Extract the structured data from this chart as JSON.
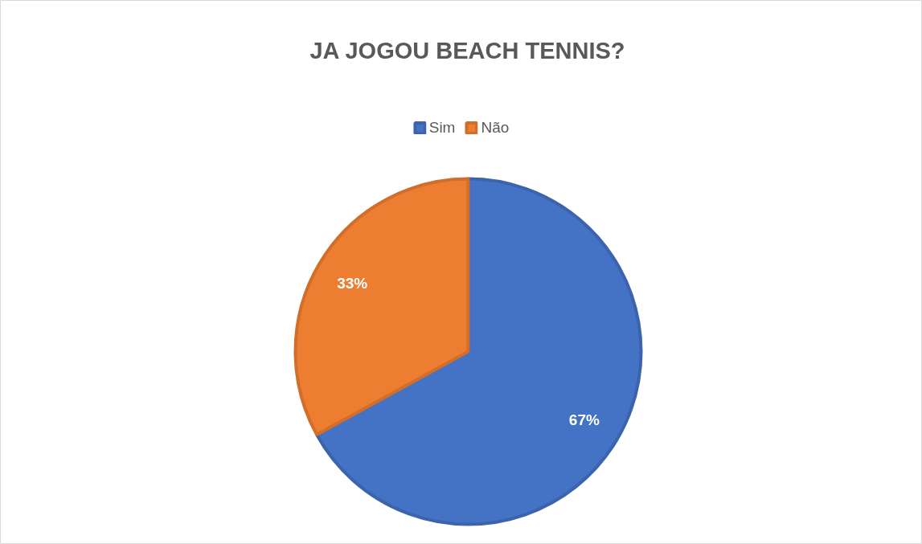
{
  "chart_data": {
    "type": "pie",
    "title": "JA JOGOU BEACH TENNIS?",
    "categories": [
      "Sim",
      "Não"
    ],
    "values": [
      67,
      33
    ],
    "colors": [
      "#4472c4",
      "#ed7d31"
    ],
    "value_labels": [
      "67%",
      "33%"
    ],
    "legend": "top"
  }
}
